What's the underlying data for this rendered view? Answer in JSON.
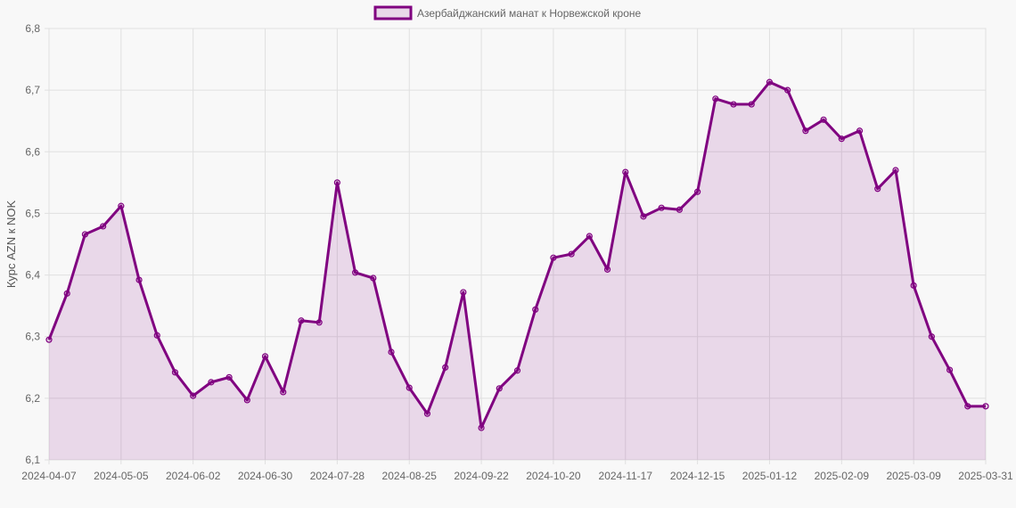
{
  "chart_data": {
    "type": "area",
    "title": "",
    "xlabel": "",
    "ylabel": "Курс AZN к NOK",
    "legend": {
      "entries": [
        "Азербайджанский манат к Норвежской кроне"
      ],
      "placement": "top-center"
    },
    "ylim": [
      6.1,
      6.8
    ],
    "y_ticks": [
      "6,1",
      "6,2",
      "6,3",
      "6,4",
      "6,5",
      "6,6",
      "6,7",
      "6,8"
    ],
    "grid": true,
    "colors": {
      "line": "#800080",
      "fill": "rgba(128,0,128,0.13)",
      "background": "#f8f8f8"
    },
    "x_tick_labels": [
      "2024-04-07",
      "2024-05-05",
      "2024-06-02",
      "2024-06-30",
      "2024-07-28",
      "2024-08-25",
      "2024-09-22",
      "2024-10-20",
      "2024-11-17",
      "2024-12-15",
      "2025-01-12",
      "2025-02-09",
      "2025-03-09",
      "2025-03-31"
    ],
    "series": [
      {
        "name": "Азербайджанский манат к Норвежской кроне",
        "x": [
          "2024-04-07",
          "2024-04-14",
          "2024-04-21",
          "2024-04-28",
          "2024-05-05",
          "2024-05-12",
          "2024-05-19",
          "2024-05-26",
          "2024-06-02",
          "2024-06-09",
          "2024-06-16",
          "2024-06-23",
          "2024-06-30",
          "2024-07-07",
          "2024-07-14",
          "2024-07-21",
          "2024-07-28",
          "2024-08-04",
          "2024-08-11",
          "2024-08-18",
          "2024-08-25",
          "2024-09-01",
          "2024-09-08",
          "2024-09-15",
          "2024-09-22",
          "2024-09-29",
          "2024-10-06",
          "2024-10-13",
          "2024-10-20",
          "2024-10-27",
          "2024-11-03",
          "2024-11-10",
          "2024-11-17",
          "2024-11-24",
          "2024-12-01",
          "2024-12-08",
          "2024-12-15",
          "2024-12-22",
          "2024-12-29",
          "2025-01-05",
          "2025-01-12",
          "2025-01-19",
          "2025-01-26",
          "2025-02-02",
          "2025-02-09",
          "2025-02-16",
          "2025-02-23",
          "2025-03-02",
          "2025-03-09",
          "2025-03-16",
          "2025-03-23",
          "2025-03-30",
          "2025-03-31"
        ],
        "values": [
          6.295,
          6.37,
          6.466,
          6.479,
          6.512,
          6.392,
          6.302,
          6.242,
          6.204,
          6.226,
          6.234,
          6.197,
          6.268,
          6.21,
          6.326,
          6.323,
          6.55,
          6.404,
          6.395,
          6.275,
          6.217,
          6.175,
          6.25,
          6.372,
          6.152,
          6.216,
          6.245,
          6.344,
          6.428,
          6.434,
          6.463,
          6.409,
          6.567,
          6.495,
          6.509,
          6.506,
          6.535,
          6.686,
          6.677,
          6.677,
          6.713,
          6.7,
          6.634,
          6.652,
          6.621,
          6.634,
          6.54,
          6.57,
          6.383,
          6.3,
          6.246,
          6.187,
          6.187
        ]
      }
    ]
  }
}
